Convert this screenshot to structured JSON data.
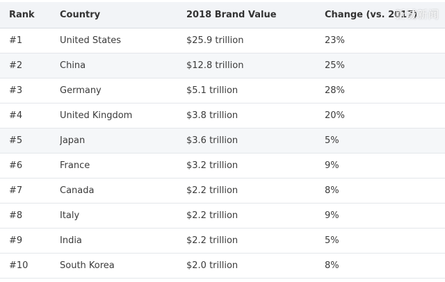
{
  "table": {
    "headers": [
      "Rank",
      "Country",
      "2018 Brand Value",
      "Change (vs. 2017)"
    ],
    "rows": [
      [
        "#1",
        "United States",
        "$25.9 trillion",
        "23%"
      ],
      [
        "#2",
        "China",
        "$12.8 trillion",
        "25%"
      ],
      [
        "#3",
        "Germany",
        "$5.1 trillion",
        "28%"
      ],
      [
        "#4",
        "United Kingdom",
        "$3.8 trillion",
        "20%"
      ],
      [
        "#5",
        "Japan",
        "$3.6 trillion",
        "5%"
      ],
      [
        "#6",
        "France",
        "$3.2 trillion",
        "9%"
      ],
      [
        "#7",
        "Canada",
        "$2.2 trillion",
        "8%"
      ],
      [
        "#8",
        "Italy",
        "$2.2 trillion",
        "9%"
      ],
      [
        "#9",
        "India",
        "$2.2 trillion",
        "5%"
      ],
      [
        "#10",
        "South Korea",
        "$2.0 trillion",
        "8%"
      ]
    ]
  },
  "watermark": "新城新闻"
}
